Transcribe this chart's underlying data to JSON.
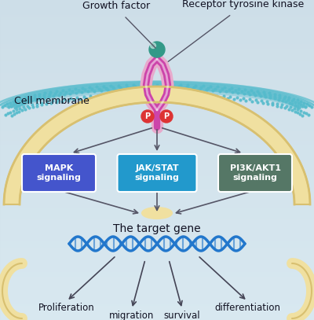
{
  "bg_top": "#cddee8",
  "bg_bottom": "#d8e8f0",
  "title_growth_factor": "Growth factor",
  "title_receptor": "Receptor tyrosine kinase",
  "label_cell_membrane": "Cell membrane",
  "box_mapk_text": "MAPK\nsignaling",
  "box_jak_text": "JAK/STAT\nsignaling",
  "box_pi3k_text": "PI3K/AKT1\nsignaling",
  "box_mapk_color": "#4455cc",
  "box_jak_color": "#2299cc",
  "box_pi3k_color": "#557766",
  "target_gene_text": "The target gene",
  "outcomes": [
    "Proliferation",
    "migration",
    "survival",
    "differentiation"
  ],
  "membrane_color": "#55bbcc",
  "membrane_dot_color": "#44aacc",
  "receptor_outer": "#e8aacc",
  "receptor_inner": "#cc44aa",
  "ball_color": "#339988",
  "phospho_color": "#dd3333",
  "dna_color": "#2277cc",
  "chr_color": "#f0e0a0",
  "chr_edge": "#d8c070",
  "arrow_color": "#555566",
  "text_color": "#111122"
}
